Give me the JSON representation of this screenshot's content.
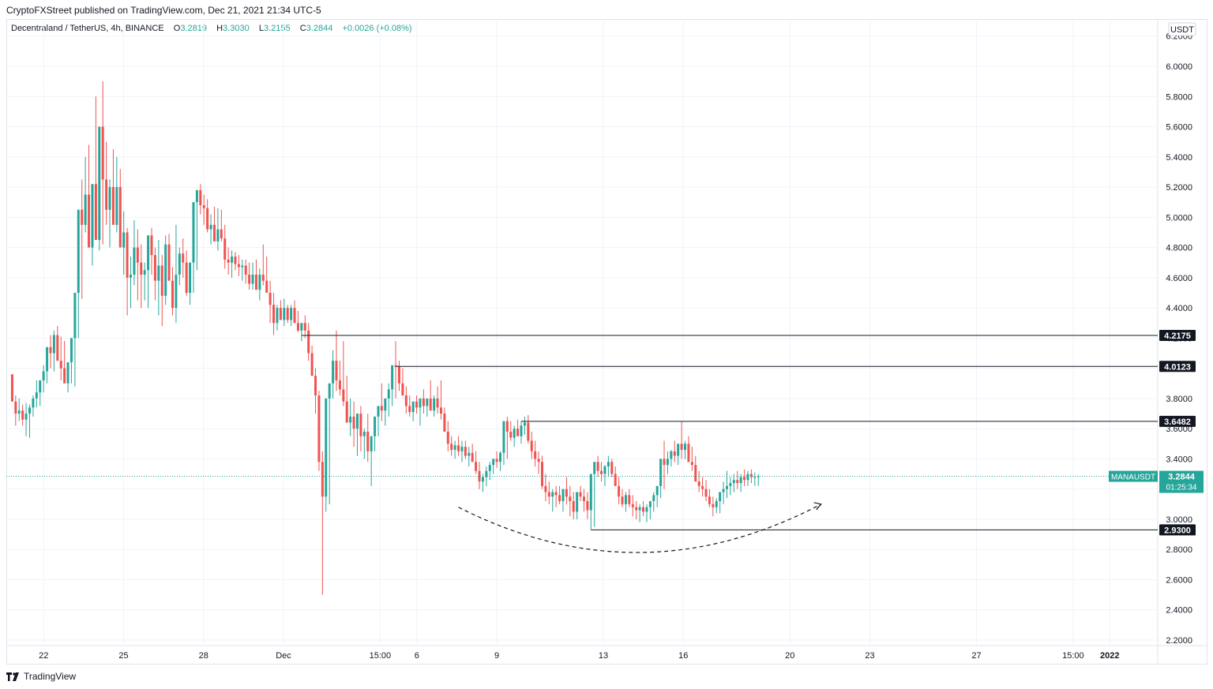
{
  "header": {
    "caption": "CryptoFXStreet published on TradingView.com, Dec 21, 2021 21:34 UTC-5"
  },
  "legend": {
    "symbol": "Decentraland / TetherUS, 4h, BINANCE",
    "o_label": "O",
    "o_value": "3.2819",
    "h_label": "H",
    "h_value": "3.3030",
    "l_label": "L",
    "l_value": "3.2155",
    "c_label": "C",
    "c_value": "3.2844",
    "change": "+0.0026 (+0.08%)"
  },
  "footer": {
    "brand": "TradingView"
  },
  "colors": {
    "up": "#26a69a",
    "down": "#ef5350",
    "grid": "#f0f3fa",
    "level": "#131722",
    "label_dark": "#131722",
    "price_tag": "#26a69a"
  },
  "chart_data": {
    "type": "candlestick",
    "instrument": "MANAUSDT",
    "timeframe": "4h",
    "currency": "USDT",
    "ylim": [
      2.15,
      6.25
    ],
    "y_ticks": [
      "2.2000",
      "2.4000",
      "2.6000",
      "2.8000",
      "3.0000",
      "3.2000",
      "3.4000",
      "3.6000",
      "3.8000",
      "4.0000",
      "4.2000",
      "4.4000",
      "4.6000",
      "4.8000",
      "5.0000",
      "5.2000",
      "5.4000",
      "5.6000",
      "5.8000",
      "6.0000",
      "6.2000"
    ],
    "x_ticks": [
      "22",
      "25",
      "28",
      "Dec",
      "15:00",
      "6",
      "9",
      "13",
      "16",
      "20",
      "23",
      "27",
      "15:00",
      "2022"
    ],
    "x_tick_days": [
      22,
      25,
      28,
      31,
      34.625,
      36,
      39,
      43,
      46,
      50,
      53,
      57,
      60.625,
      62
    ],
    "x_day_range": [
      20.6,
      63.8
    ],
    "candles": [
      [
        21,
        3.96,
        3.95,
        3.78
      ],
      [
        22,
        3.78,
        3.82,
        3.62
      ],
      [
        23,
        3.7,
        3.8,
        3.65
      ],
      [
        24,
        3.72,
        3.76,
        3.62
      ],
      [
        25,
        3.66,
        3.77,
        3.55
      ],
      [
        26,
        3.7,
        3.76,
        3.54
      ],
      [
        27,
        3.74,
        3.82,
        3.68
      ],
      [
        28,
        3.8,
        3.92,
        3.74
      ],
      [
        29,
        3.84,
        3.9,
        3.75
      ],
      [
        30,
        3.92,
        4.02,
        3.84
      ],
      [
        31,
        3.98,
        4.08,
        3.9
      ],
      [
        32,
        4.14,
        4.22,
        4.0
      ],
      [
        33,
        4.1,
        4.25,
        3.98
      ],
      [
        34,
        4.22,
        4.28,
        4.06
      ],
      [
        35,
        4.05,
        4.21,
        3.92
      ],
      [
        36,
        4.0,
        4.18,
        3.96
      ],
      [
        37,
        3.9,
        4.04,
        3.84
      ],
      [
        38,
        4.04,
        4.1,
        3.9
      ],
      [
        39,
        4.2,
        4.3,
        3.88
      ],
      [
        40,
        4.5,
        4.58,
        4.2
      ],
      [
        41,
        5.05,
        5.25,
        4.46
      ],
      [
        42,
        4.95,
        5.4,
        4.9
      ],
      [
        43,
        5.15,
        5.48,
        4.9
      ],
      [
        44,
        4.8,
        5.2,
        4.68
      ],
      [
        45,
        5.22,
        5.8,
        5.0
      ],
      [
        46,
        4.85,
        5.3,
        4.78
      ],
      [
        47,
        5.6,
        5.9,
        4.82
      ],
      [
        48,
        5.25,
        5.5,
        4.95
      ],
      [
        49,
        5.05,
        5.25,
        4.8
      ],
      [
        50,
        5.2,
        5.45,
        4.98
      ],
      [
        51,
        4.95,
        5.4,
        4.9
      ],
      [
        52,
        5.2,
        5.32,
        4.95
      ],
      [
        53,
        4.8,
        5.04,
        4.62
      ],
      [
        54,
        4.9,
        4.93,
        4.35
      ],
      [
        55,
        4.6,
        4.74,
        4.4
      ],
      [
        56,
        4.62,
        4.98,
        4.55
      ],
      [
        57,
        4.8,
        4.92,
        4.45
      ],
      [
        58,
        4.7,
        4.82,
        4.4
      ],
      [
        59,
        4.62,
        4.7,
        4.45
      ],
      [
        60,
        4.65,
        4.8,
        4.4
      ],
      [
        61,
        4.88,
        4.93,
        4.62
      ],
      [
        62,
        4.75,
        4.8,
        4.45
      ],
      [
        63,
        4.58,
        4.85,
        4.35
      ],
      [
        64,
        4.68,
        4.75,
        4.28
      ],
      [
        65,
        4.48,
        4.88,
        4.42
      ],
      [
        66,
        4.82,
        4.89,
        4.6
      ],
      [
        67,
        4.58,
        4.67,
        4.35
      ],
      [
        68,
        4.4,
        4.95,
        4.3
      ],
      [
        69,
        4.62,
        4.8,
        4.55
      ],
      [
        70,
        4.76,
        4.86,
        4.6
      ],
      [
        71,
        4.7,
        4.78,
        4.48
      ],
      [
        72,
        4.5,
        4.7,
        4.42
      ],
      [
        73,
        4.7,
        4.75,
        4.5
      ],
      [
        74,
        5.1,
        5.18,
        4.65
      ],
      [
        75,
        5.18,
        5.22,
        5.02
      ],
      [
        76,
        5.08,
        5.15,
        4.95
      ],
      [
        77,
        5.06,
        5.12,
        4.9
      ],
      [
        78,
        4.92,
        5.02,
        4.82
      ],
      [
        79,
        4.95,
        5.07,
        4.88
      ],
      [
        80,
        4.84,
        5.06,
        4.78
      ],
      [
        81,
        4.92,
        5.05,
        4.84
      ],
      [
        82,
        4.86,
        4.95,
        4.66
      ],
      [
        83,
        4.72,
        4.8,
        4.62
      ],
      [
        84,
        4.7,
        4.78,
        4.6
      ],
      [
        85,
        4.74,
        4.77,
        4.65
      ],
      [
        86,
        4.69,
        4.75,
        4.61
      ],
      [
        87,
        4.67,
        4.72,
        4.58
      ],
      [
        88,
        4.68,
        4.72,
        4.56
      ],
      [
        89,
        4.62,
        4.7,
        4.52
      ],
      [
        90,
        4.56,
        4.7,
        4.52
      ],
      [
        91,
        4.62,
        4.72,
        4.52
      ],
      [
        92,
        4.52,
        4.66,
        4.45
      ],
      [
        93,
        4.62,
        4.82,
        4.55
      ],
      [
        94,
        4.58,
        4.74,
        4.52
      ],
      [
        95,
        4.5,
        4.58,
        4.3
      ],
      [
        96,
        4.42,
        4.5,
        4.22
      ],
      [
        97,
        4.3,
        4.42,
        4.25
      ],
      [
        98,
        4.4,
        4.45,
        4.32
      ],
      [
        99,
        4.32,
        4.46,
        4.28
      ],
      [
        100,
        4.4,
        4.42,
        4.3
      ],
      [
        101,
        4.32,
        4.42,
        4.28
      ],
      [
        102,
        4.4,
        4.45,
        4.3
      ],
      [
        103,
        4.3,
        4.38,
        4.24
      ],
      [
        104,
        4.25,
        4.3,
        4.18
      ],
      [
        105,
        4.3,
        4.35,
        4.2
      ],
      [
        106,
        4.25,
        4.3,
        4.05
      ],
      [
        107,
        4.1,
        4.15,
        3.95
      ],
      [
        108,
        3.95,
        4.0,
        3.7
      ],
      [
        109,
        3.82,
        3.85,
        3.32
      ],
      [
        110,
        3.38,
        3.45,
        2.5
      ],
      [
        111,
        3.15,
        3.2,
        3.05
      ],
      [
        112,
        3.8,
        3.88,
        3.1
      ],
      [
        113,
        3.9,
        4.12,
        3.8
      ],
      [
        114,
        4.05,
        4.25,
        3.85
      ],
      [
        115,
        3.92,
        4.05,
        3.82
      ],
      [
        116,
        3.86,
        4.18,
        3.75
      ],
      [
        117,
        3.78,
        3.95,
        3.7
      ],
      [
        118,
        3.64,
        3.8,
        3.55
      ],
      [
        119,
        3.68,
        3.78,
        3.48
      ],
      [
        120,
        3.6,
        3.68,
        3.42
      ],
      [
        121,
        3.7,
        3.75,
        3.45
      ],
      [
        122,
        3.55,
        3.6,
        3.4
      ],
      [
        123,
        3.58,
        3.7,
        3.38
      ],
      [
        124,
        3.45,
        3.5,
        3.22
      ],
      [
        125,
        3.55,
        3.62,
        3.45
      ],
      [
        126,
        3.68,
        3.72,
        3.55
      ],
      [
        127,
        3.75,
        3.9,
        3.65
      ],
      [
        128,
        3.72,
        3.8,
        3.62
      ],
      [
        129,
        3.8,
        3.9,
        3.68
      ],
      [
        130,
        3.86,
        3.92,
        3.75
      ],
      [
        131,
        4.02,
        4.18,
        3.8
      ],
      [
        132,
        4.01,
        4.05,
        3.85
      ],
      [
        133,
        3.9,
        4.0,
        3.82
      ],
      [
        134,
        3.82,
        3.88,
        3.7
      ],
      [
        135,
        3.75,
        3.82,
        3.68
      ],
      [
        136,
        3.71,
        3.78,
        3.65
      ],
      [
        137,
        3.78,
        3.82,
        3.7
      ],
      [
        138,
        3.74,
        3.78,
        3.62
      ],
      [
        139,
        3.8,
        3.86,
        3.7
      ],
      [
        140,
        3.75,
        3.8,
        3.68
      ],
      [
        141,
        3.8,
        3.92,
        3.72
      ],
      [
        142,
        3.72,
        3.82,
        3.68
      ],
      [
        143,
        3.8,
        3.88,
        3.7
      ],
      [
        144,
        3.74,
        3.92,
        3.66
      ],
      [
        145,
        3.7,
        3.74,
        3.58
      ],
      [
        146,
        3.58,
        3.65,
        3.45
      ],
      [
        147,
        3.5,
        3.55,
        3.42
      ],
      [
        148,
        3.46,
        3.52,
        3.4
      ],
      [
        149,
        3.49,
        3.55,
        3.42
      ],
      [
        150,
        3.45,
        3.52,
        3.38
      ],
      [
        151,
        3.48,
        3.52,
        3.4
      ],
      [
        152,
        3.42,
        3.48,
        3.35
      ],
      [
        153,
        3.44,
        3.5,
        3.38
      ],
      [
        154,
        3.38,
        3.45,
        3.3
      ],
      [
        155,
        3.32,
        3.38,
        3.2
      ],
      [
        156,
        3.25,
        3.3,
        3.18
      ],
      [
        157,
        3.28,
        3.35,
        3.22
      ],
      [
        158,
        3.32,
        3.38,
        3.26
      ],
      [
        159,
        3.36,
        3.4,
        3.3
      ],
      [
        160,
        3.4,
        3.45,
        3.34
      ],
      [
        161,
        3.38,
        3.45,
        3.32
      ],
      [
        162,
        3.44,
        3.52,
        3.36
      ],
      [
        163,
        3.65,
        3.68,
        3.4
      ],
      [
        164,
        3.58,
        3.65,
        3.52
      ],
      [
        165,
        3.54,
        3.62,
        3.48
      ],
      [
        166,
        3.6,
        3.66,
        3.55
      ],
      [
        167,
        3.55,
        3.65,
        3.5
      ],
      [
        168,
        3.62,
        3.68,
        3.56
      ],
      [
        169,
        3.64,
        3.69,
        3.5
      ],
      [
        170,
        3.52,
        3.58,
        3.4
      ],
      [
        171,
        3.45,
        3.52,
        3.35
      ],
      [
        172,
        3.4,
        3.45,
        3.3
      ],
      [
        173,
        3.38,
        3.42,
        3.2
      ],
      [
        174,
        3.22,
        3.3,
        3.12
      ],
      [
        175,
        3.18,
        3.25,
        3.1
      ],
      [
        176,
        3.15,
        3.2,
        3.05
      ],
      [
        177,
        3.18,
        3.22,
        3.08
      ],
      [
        178,
        3.16,
        3.22,
        3.1
      ],
      [
        179,
        3.12,
        3.18,
        3.05
      ],
      [
        180,
        3.2,
        3.28,
        3.1
      ],
      [
        181,
        3.15,
        3.22,
        3.02
      ],
      [
        182,
        3.12,
        3.18,
        3.0
      ],
      [
        183,
        3.05,
        3.1,
        3.0
      ],
      [
        184,
        3.18,
        3.22,
        3.12
      ],
      [
        185,
        3.15,
        3.2,
        3.05
      ],
      [
        186,
        3.12,
        3.18,
        3.0
      ],
      [
        187,
        3.06,
        3.1,
        2.93
      ],
      [
        188,
        3.3,
        3.35,
        2.95
      ],
      [
        189,
        3.38,
        3.42,
        3.28
      ],
      [
        190,
        3.32,
        3.38,
        3.25
      ],
      [
        191,
        3.3,
        3.36,
        3.22
      ],
      [
        192,
        3.35,
        3.42,
        3.28
      ],
      [
        193,
        3.38,
        3.4,
        3.28
      ],
      [
        194,
        3.3,
        3.35,
        3.22
      ],
      [
        195,
        3.22,
        3.28,
        3.1
      ],
      [
        196,
        3.15,
        3.2,
        3.08
      ],
      [
        197,
        3.1,
        3.18,
        3.05
      ],
      [
        198,
        3.16,
        3.2,
        3.08
      ],
      [
        199,
        3.1,
        3.16,
        3.02
      ],
      [
        200,
        3.08,
        3.12,
        3.0
      ],
      [
        201,
        3.06,
        3.1,
        2.98
      ],
      [
        202,
        3.08,
        3.12,
        3.02
      ],
      [
        203,
        3.05,
        3.1,
        2.98
      ],
      [
        204,
        3.08,
        3.12,
        3.0
      ],
      [
        205,
        3.12,
        3.18,
        3.05
      ],
      [
        206,
        3.16,
        3.2,
        3.08
      ],
      [
        207,
        3.22,
        3.28,
        3.14
      ],
      [
        208,
        3.4,
        3.52,
        3.2
      ],
      [
        209,
        3.36,
        3.45,
        3.3
      ],
      [
        210,
        3.4,
        3.46,
        3.35
      ],
      [
        211,
        3.45,
        3.52,
        3.38
      ],
      [
        212,
        3.42,
        3.5,
        3.36
      ],
      [
        213,
        3.5,
        3.65,
        3.4
      ],
      [
        214,
        3.46,
        3.52,
        3.4
      ],
      [
        215,
        3.5,
        3.55,
        3.42
      ],
      [
        216,
        3.38,
        3.48,
        3.32
      ],
      [
        217,
        3.36,
        3.42,
        3.28
      ],
      [
        218,
        3.25,
        3.32,
        3.18
      ],
      [
        219,
        3.22,
        3.28,
        3.15
      ],
      [
        220,
        3.2,
        3.26,
        3.12
      ],
      [
        221,
        3.15,
        3.2,
        3.08
      ],
      [
        222,
        3.1,
        3.15,
        3.02
      ],
      [
        223,
        3.08,
        3.14,
        3.04
      ],
      [
        224,
        3.12,
        3.18,
        3.04
      ],
      [
        225,
        3.18,
        3.25,
        3.1
      ],
      [
        226,
        3.2,
        3.32,
        3.14
      ],
      [
        227,
        3.22,
        3.28,
        3.16
      ],
      [
        228,
        3.24,
        3.3,
        3.18
      ],
      [
        229,
        3.26,
        3.32,
        3.2
      ],
      [
        230,
        3.24,
        3.3,
        3.18
      ],
      [
        231,
        3.28,
        3.33,
        3.22
      ],
      [
        232,
        3.26,
        3.32,
        3.22
      ],
      [
        233,
        3.3,
        3.33,
        3.24
      ],
      [
        234,
        3.28,
        3.31,
        3.22
      ],
      [
        235,
        3.28,
        3.3,
        3.22
      ]
    ],
    "levels": [
      {
        "value": 4.2175,
        "label": "4.2175",
        "from_idx": 104
      },
      {
        "value": 4.0123,
        "label": "4.0123",
        "from_idx": 131
      },
      {
        "value": 3.6482,
        "label": "3.6482",
        "from_idx": 167
      },
      {
        "value": 2.93,
        "label": "2.9300",
        "from_idx": 187
      }
    ],
    "current_price": {
      "value": 3.2844,
      "symbol": "MANAUSDT",
      "label": "3.2844",
      "countdown": "01:25:34"
    },
    "annotation_arc": {
      "start_idx": 149,
      "end_idx": 253,
      "start_price": 3.08,
      "end_price": 3.1,
      "bottom_price": 2.78
    }
  }
}
